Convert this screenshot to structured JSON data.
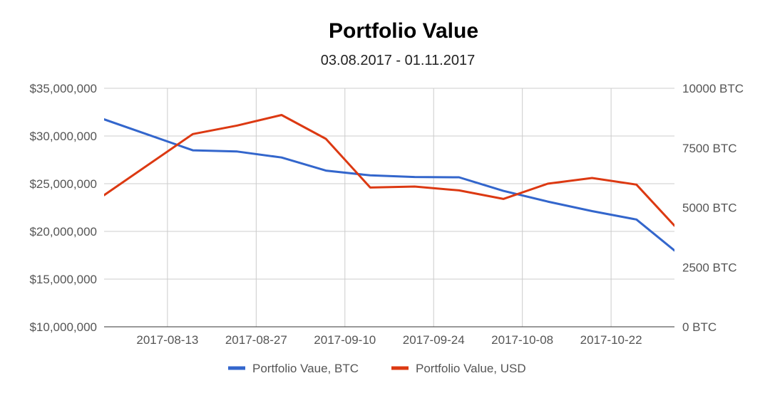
{
  "chart_data": {
    "type": "line",
    "title": "Portfolio Value",
    "subtitle": "03.08.2017 - 01.11.2017",
    "x_range": [
      "2017-08-03",
      "2017-11-01"
    ],
    "x_ticks": [
      "2017-08-13",
      "2017-08-27",
      "2017-09-10",
      "2017-09-24",
      "2017-10-08",
      "2017-10-22"
    ],
    "y_left": {
      "min": 10000000,
      "max": 35000000,
      "ticks": [
        10000000,
        15000000,
        20000000,
        25000000,
        30000000,
        35000000
      ],
      "tick_labels": [
        "$10,000,000",
        "$15,000,000",
        "$20,000,000",
        "$25,000,000",
        "$30,000,000",
        "$35,000,000"
      ]
    },
    "y_right": {
      "min": 0,
      "max": 10000,
      "ticks": [
        0,
        2500,
        5000,
        7500,
        10000
      ],
      "tick_labels": [
        "0 BTC",
        "2500 BTC",
        "5000 BTC",
        "7500 BTC",
        "10000 BTC"
      ]
    },
    "grid": true,
    "legend_position": "bottom",
    "series": [
      {
        "name": "Portfolio Vaue, BTC",
        "axis": "right",
        "color": "#3366cc",
        "points": [
          {
            "x": "2017-08-03",
            "y": 8700
          },
          {
            "x": "2017-08-17",
            "y": 7400
          },
          {
            "x": "2017-08-24",
            "y": 7350
          },
          {
            "x": "2017-08-31",
            "y": 7100
          },
          {
            "x": "2017-09-07",
            "y": 6550
          },
          {
            "x": "2017-09-14",
            "y": 6350
          },
          {
            "x": "2017-09-21",
            "y": 6280
          },
          {
            "x": "2017-09-28",
            "y": 6270
          },
          {
            "x": "2017-10-05",
            "y": 5700
          },
          {
            "x": "2017-10-12",
            "y": 5250
          },
          {
            "x": "2017-10-19",
            "y": 4850
          },
          {
            "x": "2017-10-26",
            "y": 4500
          },
          {
            "x": "2017-11-01",
            "y": 3200
          }
        ]
      },
      {
        "name": "Portfolio Value, USD",
        "axis": "left",
        "color": "#dc3912",
        "points": [
          {
            "x": "2017-08-03",
            "y": 23800000
          },
          {
            "x": "2017-08-17",
            "y": 30200000
          },
          {
            "x": "2017-08-24",
            "y": 31100000
          },
          {
            "x": "2017-08-31",
            "y": 32200000
          },
          {
            "x": "2017-09-07",
            "y": 29700000
          },
          {
            "x": "2017-09-14",
            "y": 24600000
          },
          {
            "x": "2017-09-21",
            "y": 24700000
          },
          {
            "x": "2017-09-28",
            "y": 24300000
          },
          {
            "x": "2017-10-05",
            "y": 23400000
          },
          {
            "x": "2017-10-12",
            "y": 25000000
          },
          {
            "x": "2017-10-19",
            "y": 25600000
          },
          {
            "x": "2017-10-26",
            "y": 24900000
          },
          {
            "x": "2017-11-01",
            "y": 20600000
          }
        ]
      }
    ]
  }
}
